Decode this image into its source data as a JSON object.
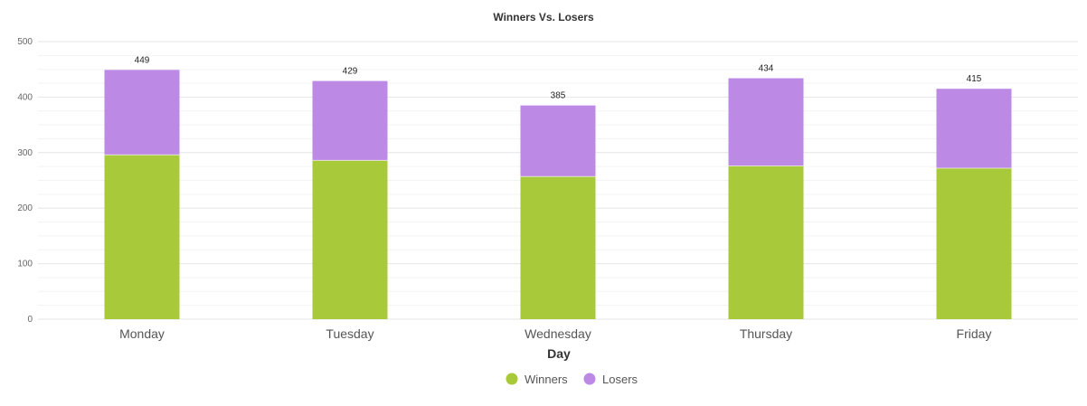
{
  "chart_data": {
    "type": "bar",
    "stacked": true,
    "title": "Winners Vs. Losers",
    "xlabel": "Day",
    "ylabel": "",
    "ylim": [
      0,
      500
    ],
    "yticks": [
      0,
      100,
      200,
      300,
      400,
      500
    ],
    "categories": [
      "Monday",
      "Tuesday",
      "Wednesday",
      "Thursday",
      "Friday"
    ],
    "series": [
      {
        "name": "Winners",
        "values": [
          296,
          286,
          257,
          276,
          272
        ],
        "color": "#a8c93a"
      },
      {
        "name": "Losers",
        "values": [
          153,
          143,
          128,
          158,
          143
        ],
        "color": "#bc8ae4"
      }
    ],
    "totals": [
      449,
      429,
      385,
      434,
      415
    ],
    "grid": true,
    "legend": "bottom-center"
  }
}
